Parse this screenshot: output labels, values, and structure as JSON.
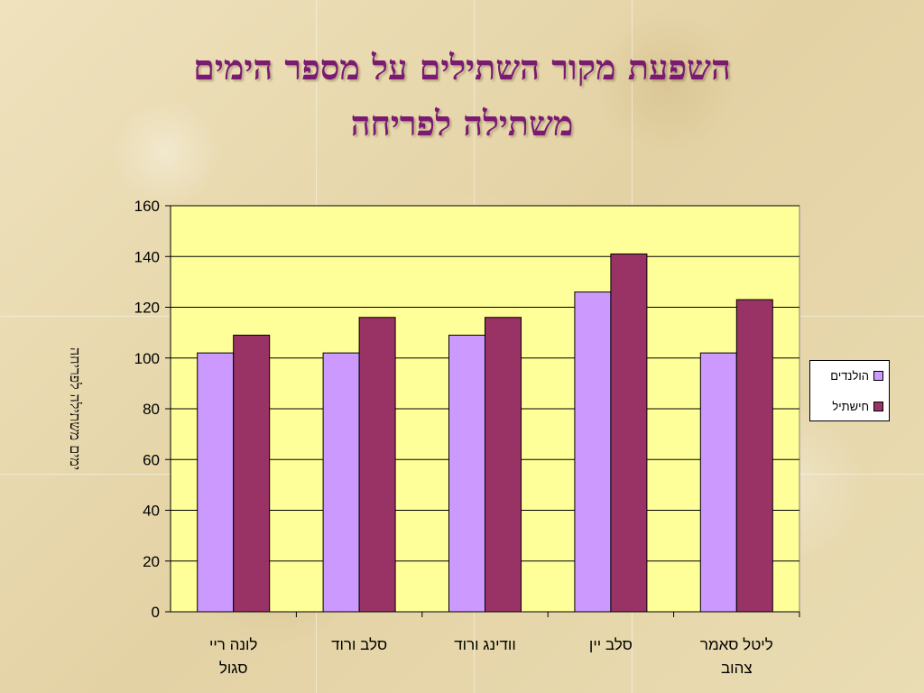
{
  "chart_data": {
    "type": "bar",
    "title": "השפעת מקור השתילים על מספר הימים משתילה לפריחה",
    "title_lines": [
      "השפעת מקור השתילים על מספר הימים",
      "משתילה לפריחה"
    ],
    "xlabel": "",
    "ylabel": "ימים משתילה לפריחה",
    "ylim": [
      0,
      160
    ],
    "yticks": [
      0,
      20,
      40,
      60,
      80,
      100,
      120,
      140,
      160
    ],
    "grid": true,
    "legend_position": "right",
    "categories": [
      [
        "לונה ריי",
        "סגול"
      ],
      [
        "סלב ורוד"
      ],
      [
        "וודינג ורוד"
      ],
      [
        "סלב יין"
      ],
      [
        "ליטל סאמר",
        "צהוב"
      ]
    ],
    "series": [
      {
        "name": "הולנדים",
        "color": "#cc99ff",
        "values": [
          102,
          102,
          109,
          126,
          102
        ]
      },
      {
        "name": "חישתיל",
        "color": "#993366",
        "values": [
          109,
          116,
          116,
          141,
          123
        ]
      }
    ],
    "colors": {
      "plot_background": "#ffff99",
      "title": "#7a1a72"
    }
  }
}
